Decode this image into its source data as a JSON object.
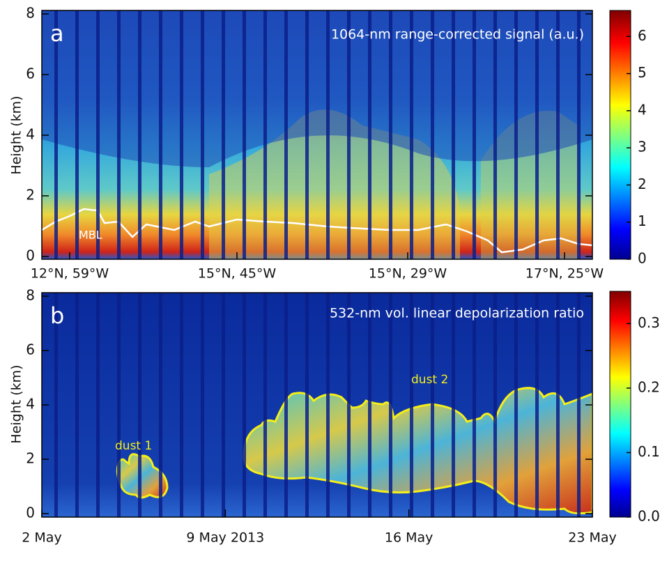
{
  "chart_data": [
    {
      "type": "heatmap",
      "panel_label": "a",
      "title": "1064-nm range-corrected signal (a.u.)",
      "ylabel": "Height (km)",
      "ylim": [
        0,
        8
      ],
      "yticks": [
        0,
        2,
        4,
        6,
        8
      ],
      "categories": [
        "12°N, 59°W",
        "15°N, 45°W",
        "15°N, 29°W",
        "17°N, 25°W"
      ],
      "annotations": [
        "MBL"
      ],
      "colorbar": {
        "lim": [
          0,
          6.7
        ],
        "ticks": [
          0,
          1,
          2,
          3,
          4,
          5,
          6
        ]
      }
    },
    {
      "type": "heatmap",
      "panel_label": "b",
      "title": "532-nm vol. linear depolarization ratio",
      "ylabel": "Height (km)",
      "ylim": [
        0,
        8
      ],
      "yticks": [
        0,
        2,
        4,
        6,
        8
      ],
      "categories": [
        "2 May",
        "9 May 2013",
        "16 May",
        "23 May"
      ],
      "annotations": [
        "dust 1",
        "dust 2"
      ],
      "colorbar": {
        "lim": [
          0,
          0.35
        ],
        "ticks": [
          {
            "value": 0,
            "label": "0.0"
          },
          0.1,
          0.2,
          0.3
        ]
      }
    }
  ]
}
